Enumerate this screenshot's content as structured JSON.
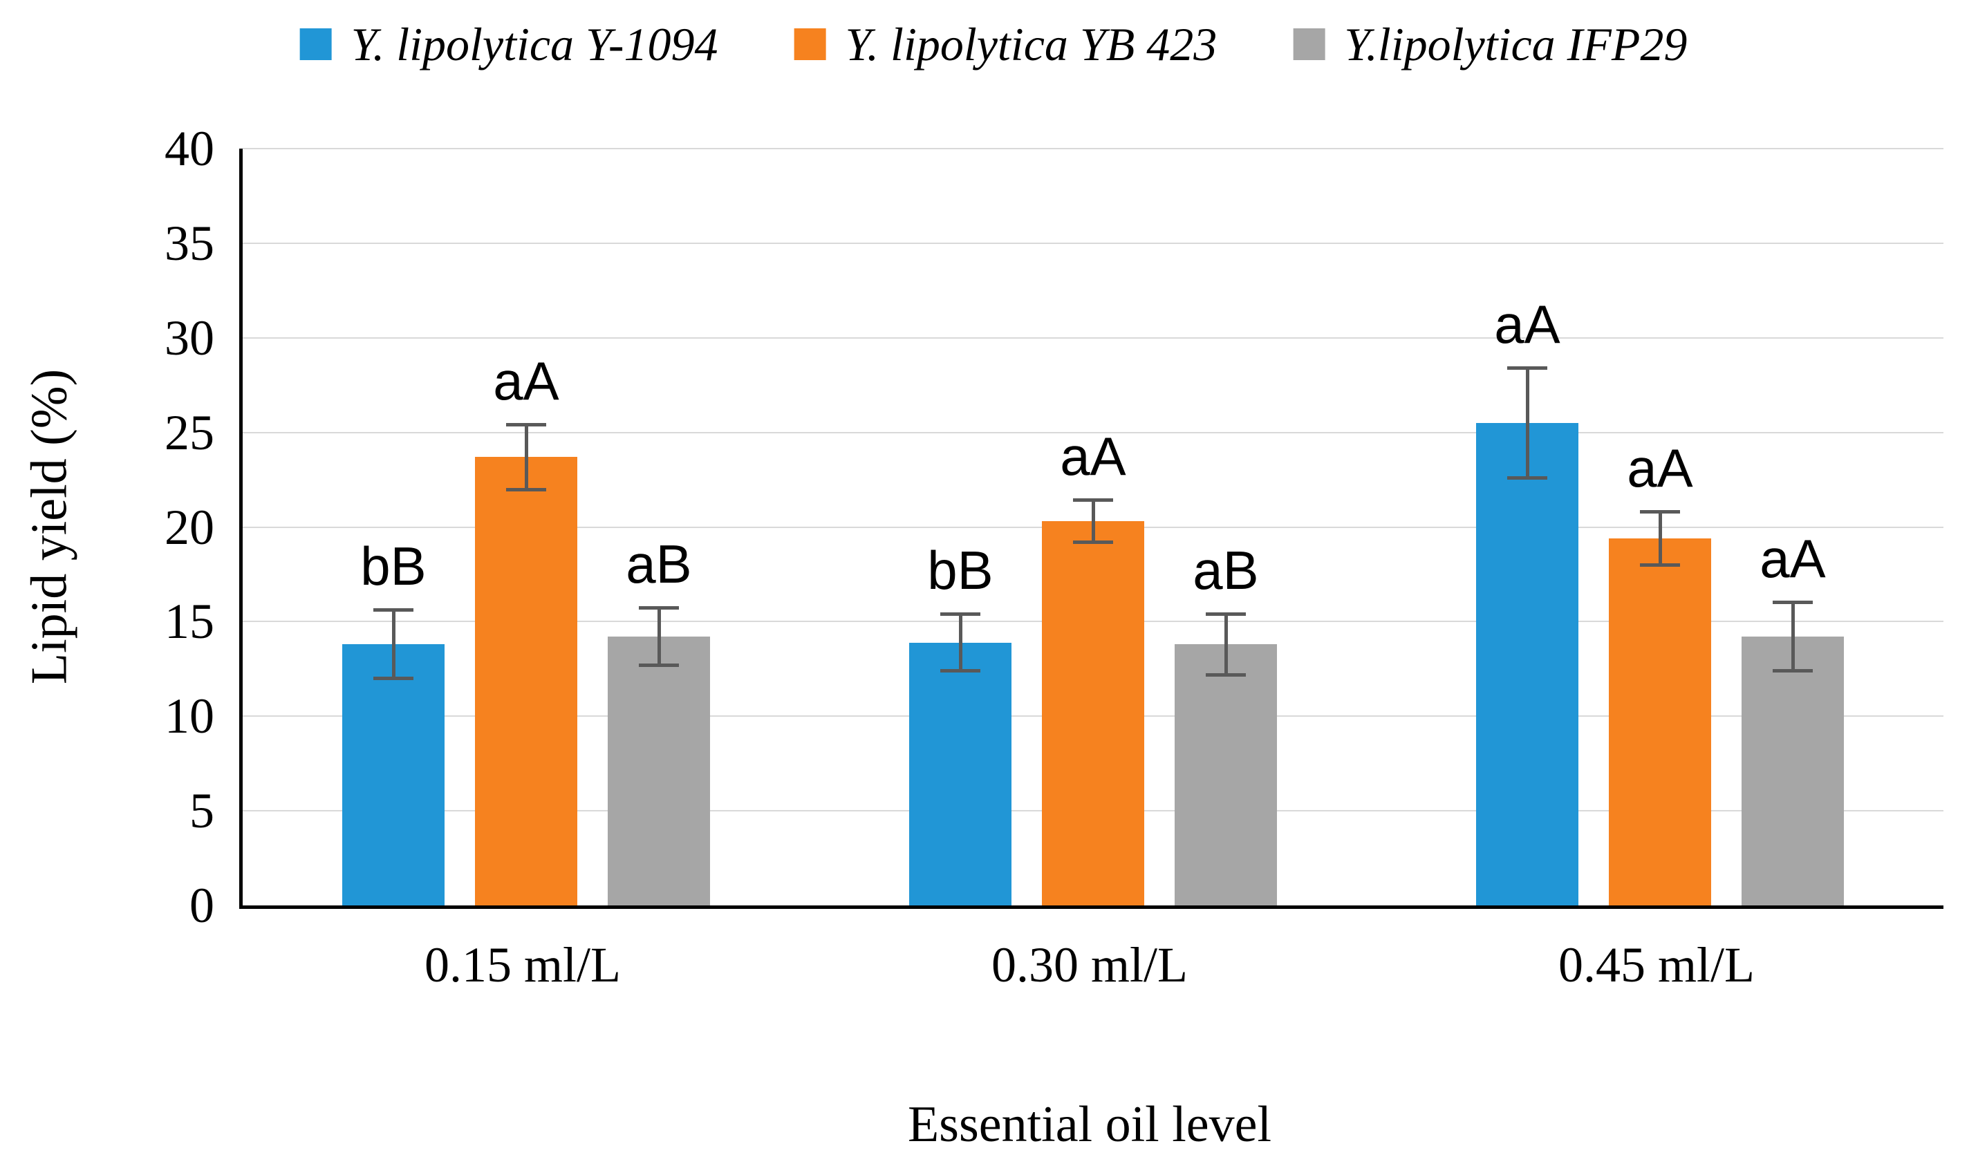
{
  "chart_data": {
    "type": "bar",
    "title": "",
    "xlabel": "Essential oil level",
    "ylabel": "Lipid yield (%)",
    "ylim": [
      0,
      40
    ],
    "yticks": [
      0,
      5,
      10,
      15,
      20,
      25,
      30,
      35,
      40
    ],
    "grid": "horizontal",
    "legend_position": "top",
    "gridline_color": "#d9d9d9",
    "axis_color": "#000000",
    "error_bar_color": "#595959",
    "categories": [
      "0.15 ml/L",
      "0.30 ml/L",
      "0.45 ml/L"
    ],
    "series": [
      {
        "name": "Y. lipolytica Y-1094",
        "color": "#2196d6",
        "values": [
          13.8,
          13.9,
          25.5
        ],
        "errors": [
          1.9,
          1.6,
          3.0
        ],
        "sig_labels": [
          "bB",
          "bB",
          "aA"
        ]
      },
      {
        "name": "Y. lipolytica YB 423",
        "color": "#f6821f",
        "values": [
          23.7,
          20.3,
          19.4
        ],
        "errors": [
          1.8,
          1.2,
          1.5
        ],
        "sig_labels": [
          "aA",
          "aA",
          "aA"
        ]
      },
      {
        "name": "Y.lipolytica IFP29",
        "color": "#a6a6a6",
        "values": [
          14.2,
          13.8,
          14.2
        ],
        "errors": [
          1.6,
          1.7,
          1.9
        ],
        "sig_labels": [
          "aB",
          "aB",
          "aA"
        ]
      }
    ]
  }
}
